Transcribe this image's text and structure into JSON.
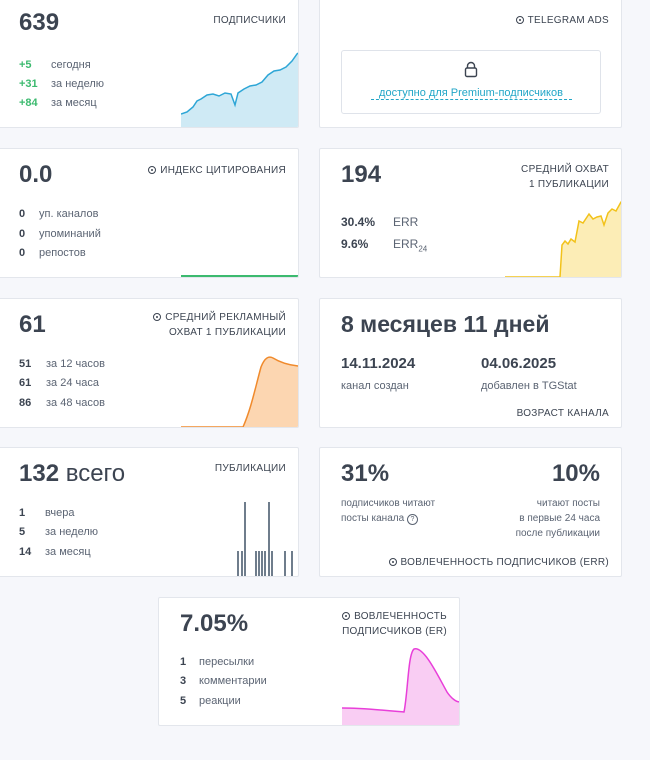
{
  "subscribers": {
    "title": "ПОДПИСЧИКИ",
    "value": "639",
    "rows": [
      {
        "num": "+5",
        "label": "сегодня"
      },
      {
        "num": "+31",
        "label": "за неделю"
      },
      {
        "num": "+84",
        "label": "за месяц"
      }
    ]
  },
  "ads": {
    "title": "TELEGRAM ADS",
    "icon": "info-icon",
    "lock_icon": "lock-icon",
    "link": "доступно для Premium-подписчиков"
  },
  "citation": {
    "title": "ИНДЕКС ЦИТИРОВАНИЯ",
    "value": "0.0",
    "rows": [
      {
        "num": "0",
        "label": "уп. каналов"
      },
      {
        "num": "0",
        "label": "упоминаний"
      },
      {
        "num": "0",
        "label": "репостов"
      }
    ]
  },
  "reach": {
    "title_line1": "СРЕДНИЙ ОХВАТ",
    "title_line2": "1 ПУБЛИКАЦИИ",
    "value": "194",
    "rows": [
      {
        "num": "30.4%",
        "label": "ERR",
        "sub": ""
      },
      {
        "num": "9.6%",
        "label": "ERR",
        "sub": "24"
      }
    ]
  },
  "ad_reach": {
    "title_line1": "СРЕДНИЙ РЕКЛАМНЫЙ",
    "title_line2": "ОХВАТ 1 ПУБЛИКАЦИИ",
    "value": "61",
    "rows": [
      {
        "num": "51",
        "label": "за 12 часов"
      },
      {
        "num": "61",
        "label": "за 24 часа"
      },
      {
        "num": "86",
        "label": "за 48 часов"
      }
    ]
  },
  "age": {
    "value": "8 месяцев 11 дней",
    "created_date": "14.11.2024",
    "created_label": "канал создан",
    "added_date": "04.06.2025",
    "added_label": "добавлен в TGStat",
    "footer": "ВОЗРАСТ КАНАЛА"
  },
  "posts": {
    "title": "ПУБЛИКАЦИИ",
    "value_num": "132",
    "value_word": "всего",
    "rows": [
      {
        "num": "1",
        "label": "вчера"
      },
      {
        "num": "5",
        "label": "за неделю"
      },
      {
        "num": "14",
        "label": "за месяц"
      }
    ]
  },
  "err": {
    "left_value": "31%",
    "left_line1": "подписчиков читают",
    "left_line2": "посты канала",
    "right_value": "10%",
    "right_line1": "читают посты",
    "right_line2": "в первые 24 часа",
    "right_line3": "после публикации",
    "footer": "ВОВЛЕЧЕННОСТЬ ПОДПИСЧИКОВ (ERR)"
  },
  "er": {
    "title_line1": "ВОВЛЕЧЕННОСТЬ",
    "title_line2": "ПОДПИСЧИКОВ (ER)",
    "value": "7.05%",
    "rows": [
      {
        "num": "1",
        "label": "пересылки"
      },
      {
        "num": "3",
        "label": "комментарии"
      },
      {
        "num": "5",
        "label": "реакции"
      }
    ]
  },
  "colors": {
    "subscribers": "#2ea6d6",
    "reach": "#f2c21a",
    "ad_reach": "#f08a2c",
    "citation": "#3cba6f",
    "posts": "#6f7d8c",
    "er": "#e83fd9",
    "link": "#22a6c7"
  }
}
